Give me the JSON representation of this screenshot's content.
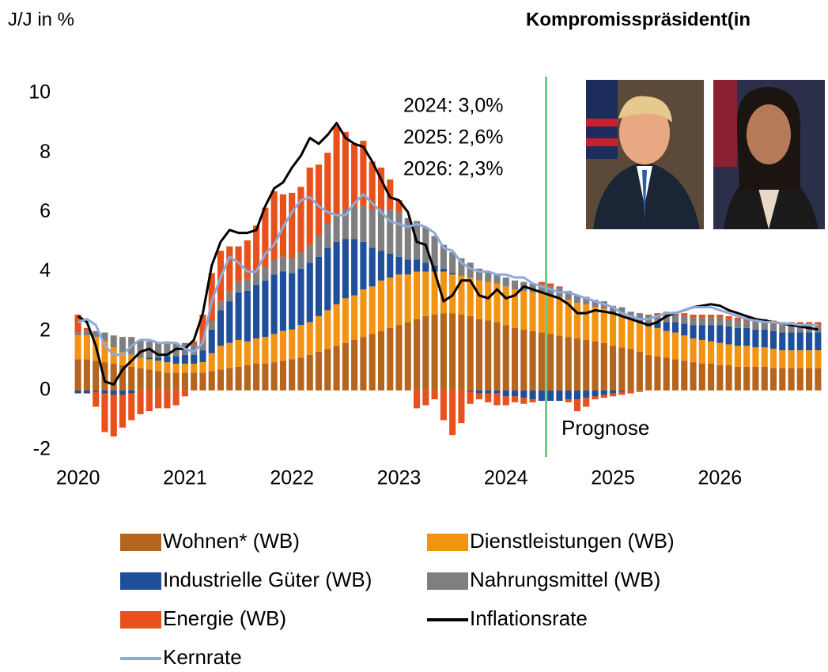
{
  "header": {
    "left": "J/J in %",
    "right": "Kompromisspräsident(in"
  },
  "chart_data": {
    "type": "bar",
    "stacked": true,
    "annotations": [
      "2024: 3,0%",
      "2025: 2,6%",
      "2026: 2,3%"
    ],
    "forecast": {
      "label": "Prognose",
      "start": 53,
      "color": "#2bb24c"
    },
    "categories": [
      "2020",
      null,
      null,
      null,
      null,
      null,
      null,
      null,
      null,
      null,
      null,
      null,
      "2021",
      null,
      null,
      null,
      null,
      null,
      null,
      null,
      null,
      null,
      null,
      null,
      "2022",
      null,
      null,
      null,
      null,
      null,
      null,
      null,
      null,
      null,
      null,
      null,
      "2023",
      null,
      null,
      null,
      null,
      null,
      null,
      null,
      null,
      null,
      null,
      null,
      "2024",
      null,
      null,
      null,
      null,
      null,
      null,
      null,
      null,
      null,
      null,
      null,
      "2025",
      null,
      null,
      null,
      null,
      null,
      null,
      null,
      null,
      null,
      null,
      null,
      "2026",
      null,
      null,
      null,
      null,
      null,
      null,
      null,
      null,
      null,
      null,
      null
    ],
    "ylim": [
      -2,
      10
    ],
    "yticks": [
      -2,
      0,
      2,
      4,
      6,
      8,
      10
    ],
    "series": [
      {
        "name": "Wohnen* (WB)",
        "type": "bar",
        "color": "#b5651d",
        "values": [
          1.05,
          1.05,
          1.0,
          0.95,
          0.9,
          0.85,
          0.8,
          0.75,
          0.7,
          0.65,
          0.6,
          0.6,
          0.6,
          0.6,
          0.6,
          0.65,
          0.7,
          0.75,
          0.8,
          0.85,
          0.9,
          0.9,
          0.95,
          1.0,
          1.05,
          1.1,
          1.2,
          1.3,
          1.4,
          1.5,
          1.6,
          1.7,
          1.8,
          1.9,
          2.0,
          2.1,
          2.2,
          2.3,
          2.4,
          2.5,
          2.55,
          2.6,
          2.6,
          2.55,
          2.5,
          2.4,
          2.35,
          2.3,
          2.2,
          2.1,
          2.05,
          2.0,
          1.95,
          1.9,
          1.85,
          1.8,
          1.75,
          1.7,
          1.65,
          1.6,
          1.5,
          1.45,
          1.4,
          1.3,
          1.2,
          1.15,
          1.1,
          1.05,
          1.0,
          0.95,
          0.9,
          0.9,
          0.85,
          0.85,
          0.8,
          0.8,
          0.8,
          0.8,
          0.75,
          0.75,
          0.75,
          0.75,
          0.75,
          0.75
        ]
      },
      {
        "name": "Dienstleistungen (WB)",
        "type": "bar",
        "color": "#f39312",
        "values": [
          0.8,
          0.8,
          0.8,
          0.7,
          0.55,
          0.45,
          0.4,
          0.35,
          0.35,
          0.35,
          0.35,
          0.3,
          0.3,
          0.3,
          0.35,
          0.6,
          0.8,
          0.85,
          0.9,
          0.8,
          0.85,
          0.9,
          0.95,
          1.0,
          1.0,
          1.1,
          1.1,
          1.2,
          1.3,
          1.4,
          1.5,
          1.5,
          1.6,
          1.6,
          1.7,
          1.7,
          1.7,
          1.6,
          1.6,
          1.5,
          1.45,
          1.4,
          1.3,
          1.3,
          1.3,
          1.3,
          1.3,
          1.3,
          1.3,
          1.3,
          1.3,
          1.3,
          1.3,
          1.3,
          1.3,
          1.25,
          1.2,
          1.2,
          1.15,
          1.15,
          1.1,
          1.1,
          1.0,
          1.0,
          0.95,
          0.95,
          0.9,
          0.9,
          0.85,
          0.8,
          0.8,
          0.75,
          0.75,
          0.7,
          0.7,
          0.7,
          0.65,
          0.65,
          0.65,
          0.6,
          0.6,
          0.6,
          0.6,
          0.6
        ]
      },
      {
        "name": "Industrielle Güter (WB)",
        "type": "bar",
        "color": "#1f4e9a",
        "values": [
          -0.1,
          -0.1,
          -0.05,
          -0.1,
          -0.15,
          -0.15,
          -0.1,
          0.0,
          0.05,
          0.1,
          0.2,
          0.25,
          0.3,
          0.3,
          0.4,
          0.8,
          1.2,
          1.4,
          1.6,
          1.7,
          1.8,
          1.9,
          2.0,
          2.0,
          1.9,
          1.9,
          2.0,
          2.0,
          2.1,
          2.1,
          2.0,
          1.9,
          1.6,
          1.3,
          1.0,
          0.8,
          0.6,
          0.5,
          0.4,
          0.3,
          0.2,
          0.1,
          0.05,
          0.0,
          -0.05,
          -0.1,
          -0.1,
          -0.1,
          -0.2,
          -0.2,
          -0.25,
          -0.3,
          -0.35,
          -0.35,
          -0.35,
          -0.3,
          -0.3,
          -0.25,
          -0.2,
          -0.15,
          -0.1,
          -0.05,
          0.0,
          0.05,
          0.1,
          0.2,
          0.3,
          0.35,
          0.4,
          0.45,
          0.5,
          0.55,
          0.6,
          0.6,
          0.6,
          0.6,
          0.6,
          0.6,
          0.6,
          0.6,
          0.6,
          0.6,
          0.6,
          0.6
        ]
      },
      {
        "name": "Nahrungsmittel (WB)",
        "type": "bar",
        "color": "#7f7f7f",
        "values": [
          0.1,
          0.15,
          0.2,
          0.3,
          0.4,
          0.5,
          0.6,
          0.6,
          0.55,
          0.5,
          0.5,
          0.45,
          0.4,
          0.35,
          0.3,
          0.3,
          0.3,
          0.35,
          0.35,
          0.4,
          0.4,
          0.45,
          0.5,
          0.5,
          0.5,
          0.55,
          0.6,
          0.7,
          0.8,
          0.9,
          1.0,
          1.1,
          1.2,
          1.3,
          1.4,
          1.5,
          1.5,
          1.4,
          1.3,
          1.2,
          1.0,
          0.8,
          0.7,
          0.6,
          0.5,
          0.4,
          0.35,
          0.3,
          0.3,
          0.3,
          0.3,
          0.3,
          0.3,
          0.3,
          0.3,
          0.3,
          0.25,
          0.25,
          0.25,
          0.25,
          0.25,
          0.25,
          0.25,
          0.25,
          0.25,
          0.25,
          0.25,
          0.25,
          0.25,
          0.25,
          0.25,
          0.25,
          0.25,
          0.25,
          0.25,
          0.25,
          0.25,
          0.25,
          0.25,
          0.25,
          0.25,
          0.25,
          0.25,
          0.25
        ]
      },
      {
        "name": "Energie (WB)",
        "type": "bar",
        "color": "#e8501c",
        "values": [
          0.6,
          0.1,
          -0.5,
          -1.3,
          -1.4,
          -1.1,
          -0.9,
          -0.8,
          -0.7,
          -0.6,
          -0.6,
          -0.5,
          -0.2,
          0.1,
          0.9,
          1.6,
          1.7,
          1.5,
          1.2,
          1.3,
          1.6,
          2.0,
          2.3,
          2.1,
          2.2,
          2.2,
          2.6,
          2.4,
          2.4,
          3.0,
          2.6,
          2.1,
          2.2,
          1.6,
          1.4,
          1.0,
          0.4,
          0.0,
          -0.6,
          -0.5,
          -0.3,
          -1.0,
          -1.5,
          -1.1,
          -0.4,
          -0.2,
          -0.3,
          -0.4,
          -0.3,
          -0.2,
          -0.2,
          -0.1,
          0.1,
          0.1,
          0.05,
          -0.1,
          -0.4,
          -0.3,
          -0.1,
          -0.1,
          -0.1,
          -0.1,
          -0.1,
          -0.05,
          0.05,
          0.05,
          0.1,
          0.1,
          0.1,
          0.1,
          0.1,
          0.1,
          0.1,
          0.1,
          0.1,
          0.1,
          0.1,
          0.1,
          0.1,
          0.1,
          0.1,
          0.1,
          0.1,
          0.1
        ]
      },
      {
        "name": "Inflationsrate",
        "type": "line",
        "color": "#000000",
        "values": [
          2.5,
          2.3,
          1.5,
          0.3,
          0.2,
          0.7,
          1.0,
          1.3,
          1.4,
          1.2,
          1.2,
          1.4,
          1.4,
          1.7,
          2.6,
          4.2,
          5.0,
          5.4,
          5.3,
          5.3,
          5.4,
          6.2,
          6.8,
          7.0,
          7.5,
          7.9,
          8.5,
          8.3,
          8.6,
          9.0,
          8.5,
          8.3,
          8.2,
          7.7,
          7.1,
          6.5,
          6.4,
          6.0,
          5.0,
          4.9,
          4.0,
          3.0,
          3.2,
          3.7,
          3.7,
          3.2,
          3.1,
          3.4,
          3.1,
          3.2,
          3.5,
          3.4,
          3.3,
          3.2,
          3.1,
          2.9,
          2.6,
          2.6,
          2.7,
          2.65,
          2.6,
          2.5,
          2.4,
          2.3,
          2.2,
          2.3,
          2.5,
          2.6,
          2.7,
          2.8,
          2.85,
          2.9,
          2.85,
          2.7,
          2.6,
          2.5,
          2.4,
          2.35,
          2.3,
          2.25,
          2.2,
          2.15,
          2.1,
          2.05
        ]
      },
      {
        "name": "Kernrate",
        "type": "line",
        "color": "#8eaadb",
        "values": [
          2.3,
          2.4,
          2.2,
          1.5,
          1.2,
          1.2,
          1.5,
          1.7,
          1.7,
          1.6,
          1.6,
          1.6,
          1.4,
          1.3,
          1.6,
          3.0,
          3.8,
          4.5,
          4.3,
          4.0,
          4.0,
          4.6,
          4.9,
          5.5,
          6.0,
          6.4,
          6.5,
          6.2,
          6.0,
          5.9,
          5.9,
          6.3,
          6.6,
          6.3,
          6.0,
          5.7,
          5.6,
          5.5,
          5.6,
          5.5,
          5.3,
          4.8,
          4.7,
          4.3,
          4.1,
          4.0,
          4.0,
          3.9,
          3.9,
          3.8,
          3.8,
          3.6,
          3.5,
          3.4,
          3.3,
          3.3,
          3.2,
          3.1,
          3.0,
          2.9,
          2.8,
          2.6,
          2.5,
          2.4,
          2.4,
          2.5,
          2.6,
          2.6,
          2.7,
          2.8,
          2.8,
          2.8,
          2.7,
          2.6,
          2.5,
          2.4,
          2.35,
          2.3,
          2.3,
          2.25,
          2.25,
          2.2,
          2.2,
          2.2
        ]
      }
    ]
  }
}
